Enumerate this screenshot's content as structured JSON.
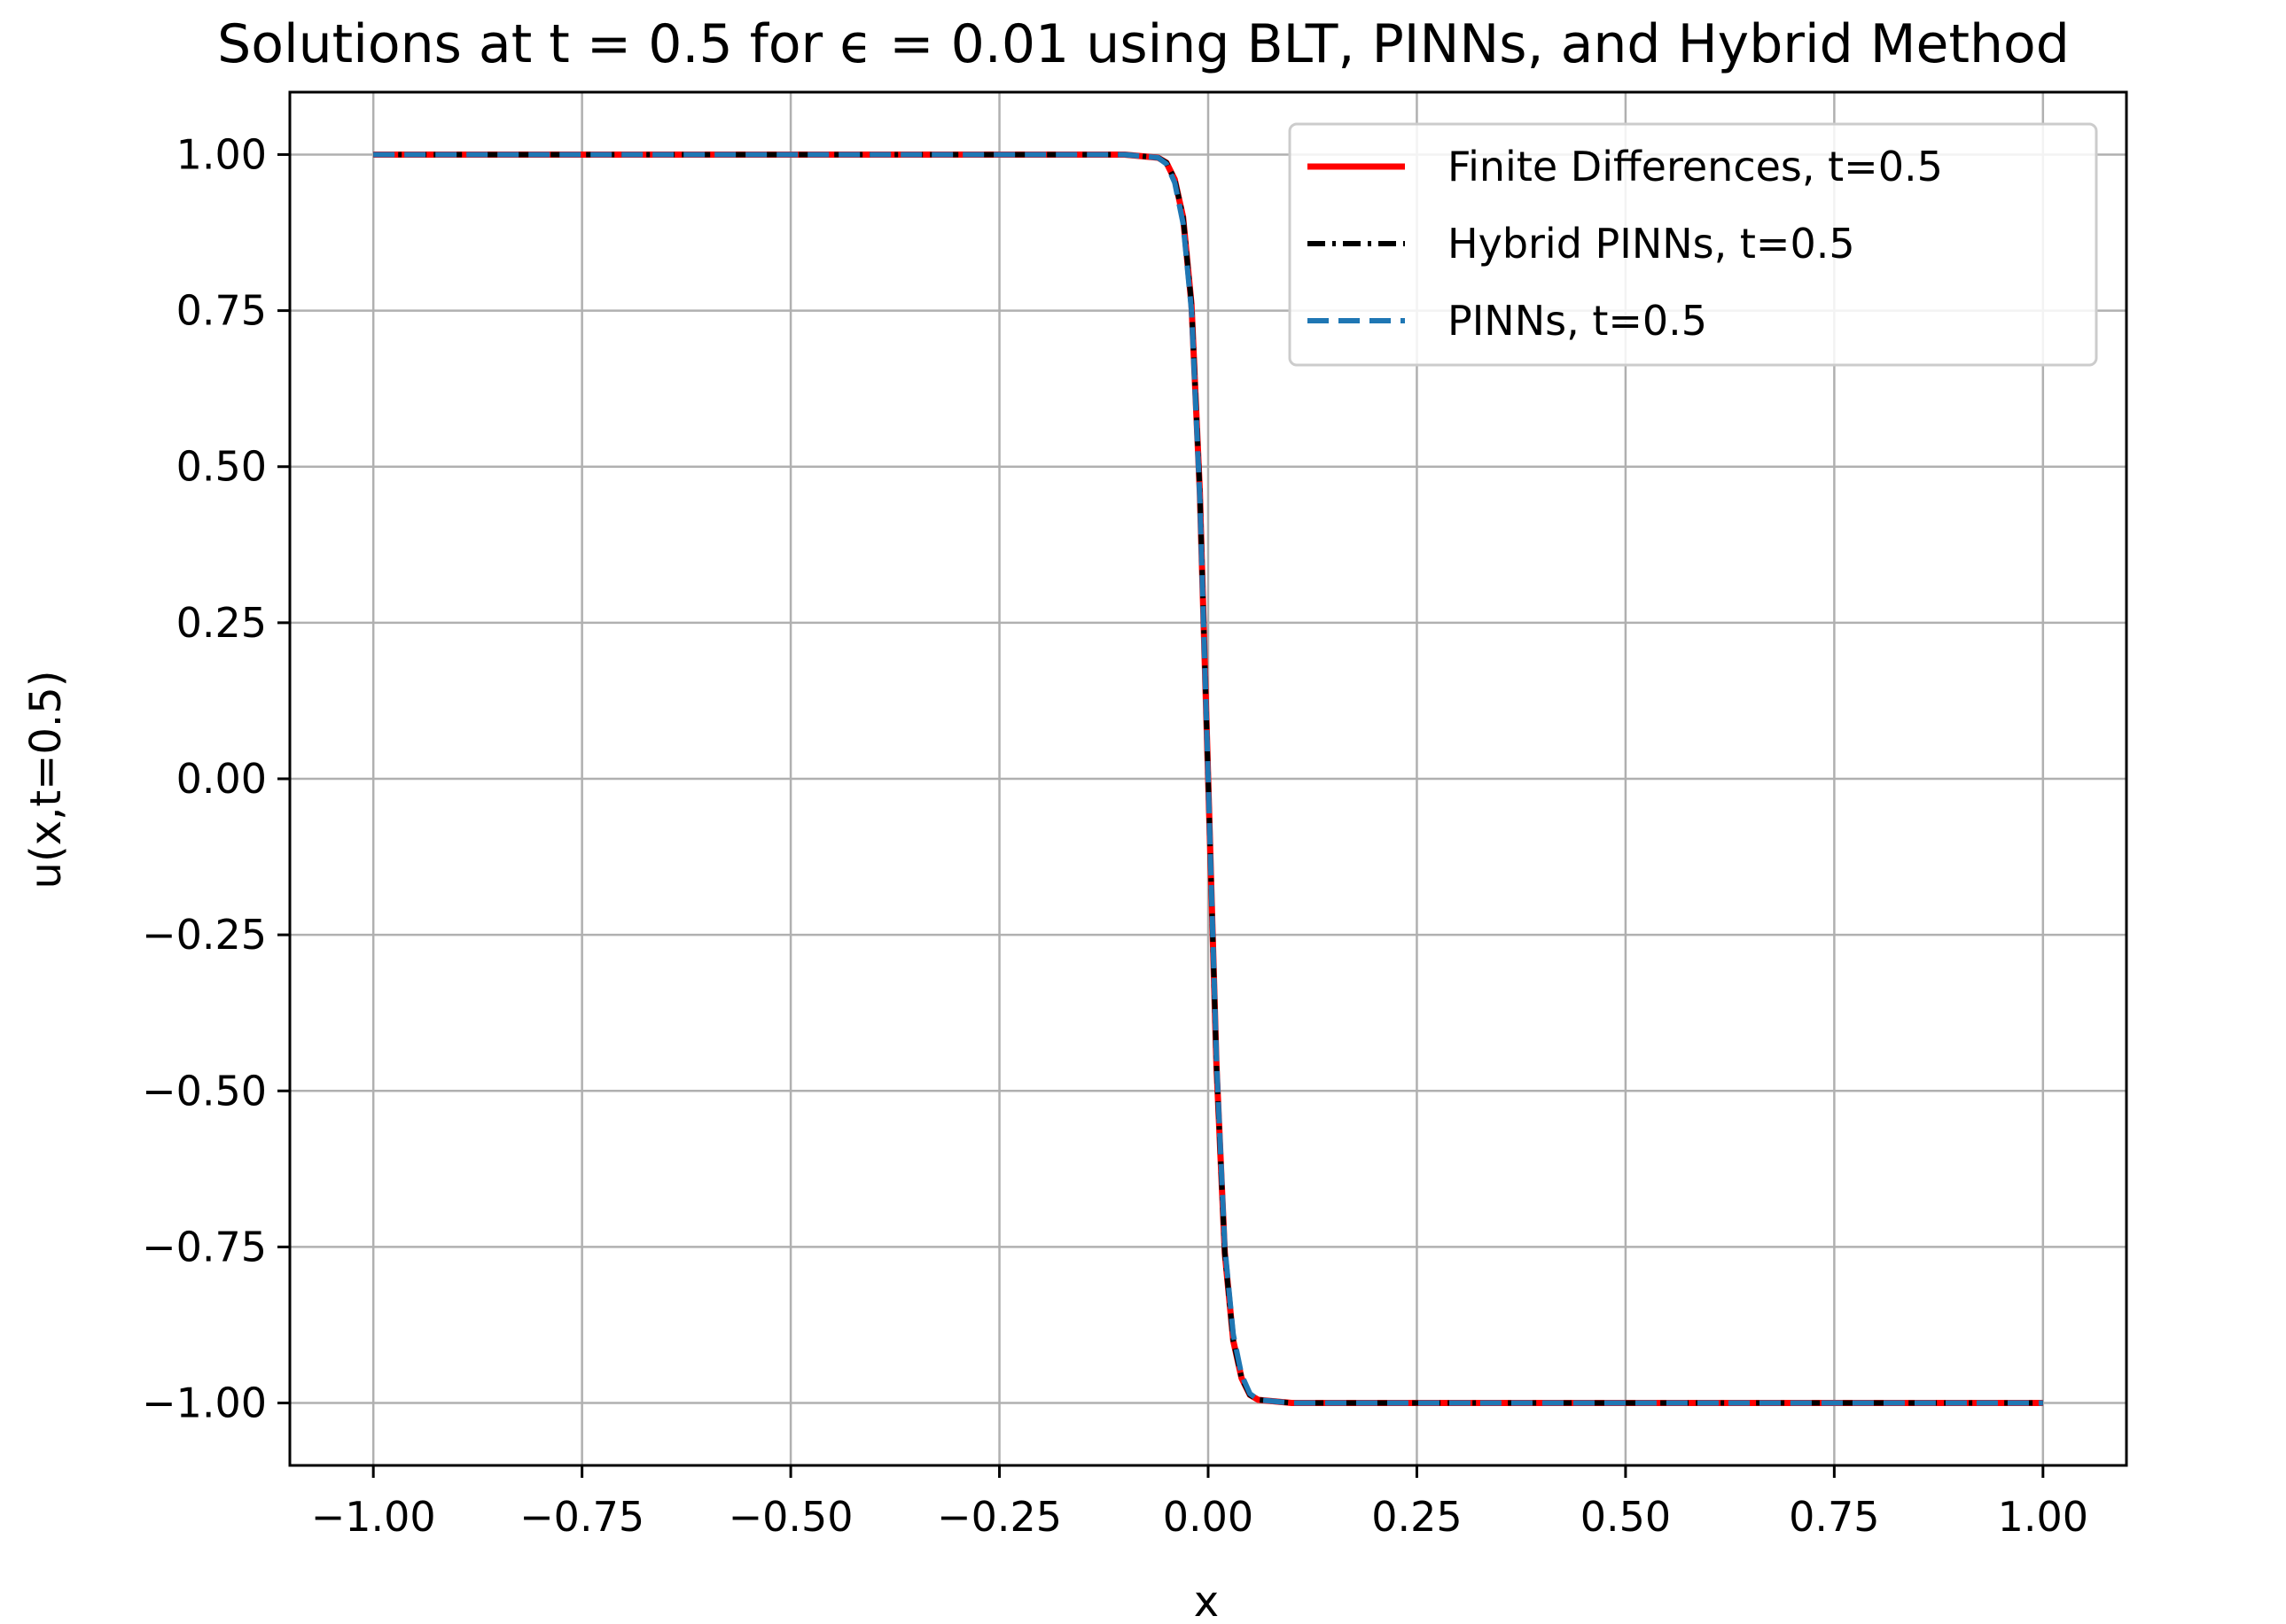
{
  "chart_data": {
    "type": "line",
    "title": "Solutions at t = 0.5 for ϵ = 0.01 using BLT, PINNs, and Hybrid Method",
    "xlabel": "x",
    "ylabel": "u(x,t=0.5)",
    "xlim": [
      -1.1,
      1.1
    ],
    "ylim": [
      -1.1,
      1.1
    ],
    "x_ticks": [
      -1.0,
      -0.75,
      -0.5,
      -0.25,
      0.0,
      0.25,
      0.5,
      0.75,
      1.0
    ],
    "x_tick_labels": [
      "−1.00",
      "−0.75",
      "−0.50",
      "−0.25",
      "0.00",
      "0.25",
      "0.50",
      "0.75",
      "1.00"
    ],
    "y_ticks": [
      1.0,
      0.75,
      0.5,
      0.25,
      0.0,
      -0.25,
      -0.5,
      -0.75,
      -1.0
    ],
    "y_tick_labels": [
      "1.00",
      "0.75",
      "0.50",
      "0.25",
      "0.00",
      "−0.25",
      "−0.50",
      "−0.75",
      "−1.00"
    ],
    "grid": true,
    "legend_position": "top-right",
    "x": [
      -1.0,
      -0.5,
      -0.1,
      -0.06,
      -0.05,
      -0.04,
      -0.03,
      -0.02,
      -0.01,
      0.0,
      0.01,
      0.02,
      0.03,
      0.04,
      0.05,
      0.06,
      0.1,
      0.5,
      1.0
    ],
    "series": [
      {
        "name": "Finite Differences, t=0.5",
        "color": "#ff0000",
        "style": "solid",
        "values": [
          1.0,
          1.0,
          1.0,
          0.995,
          0.987,
          0.96,
          0.9,
          0.76,
          0.46,
          0.0,
          -0.46,
          -0.76,
          -0.9,
          -0.96,
          -0.987,
          -0.995,
          -1.0,
          -1.0,
          -1.0
        ]
      },
      {
        "name": "Hybrid PINNs, t=0.5",
        "color": "#000000",
        "style": "dashdot",
        "values": [
          1.0,
          1.0,
          1.0,
          0.995,
          0.987,
          0.96,
          0.9,
          0.76,
          0.46,
          0.0,
          -0.46,
          -0.76,
          -0.9,
          -0.96,
          -0.987,
          -0.995,
          -1.0,
          -1.0,
          -1.0
        ]
      },
      {
        "name": "PINNs, t=0.5",
        "color": "#1f77b4",
        "style": "dashed",
        "values": [
          1.0,
          1.0,
          1.0,
          0.995,
          0.985,
          0.955,
          0.89,
          0.75,
          0.45,
          0.0,
          -0.45,
          -0.75,
          -0.89,
          -0.955,
          -0.985,
          -0.995,
          -1.0,
          -1.0,
          -1.0
        ]
      }
    ]
  }
}
